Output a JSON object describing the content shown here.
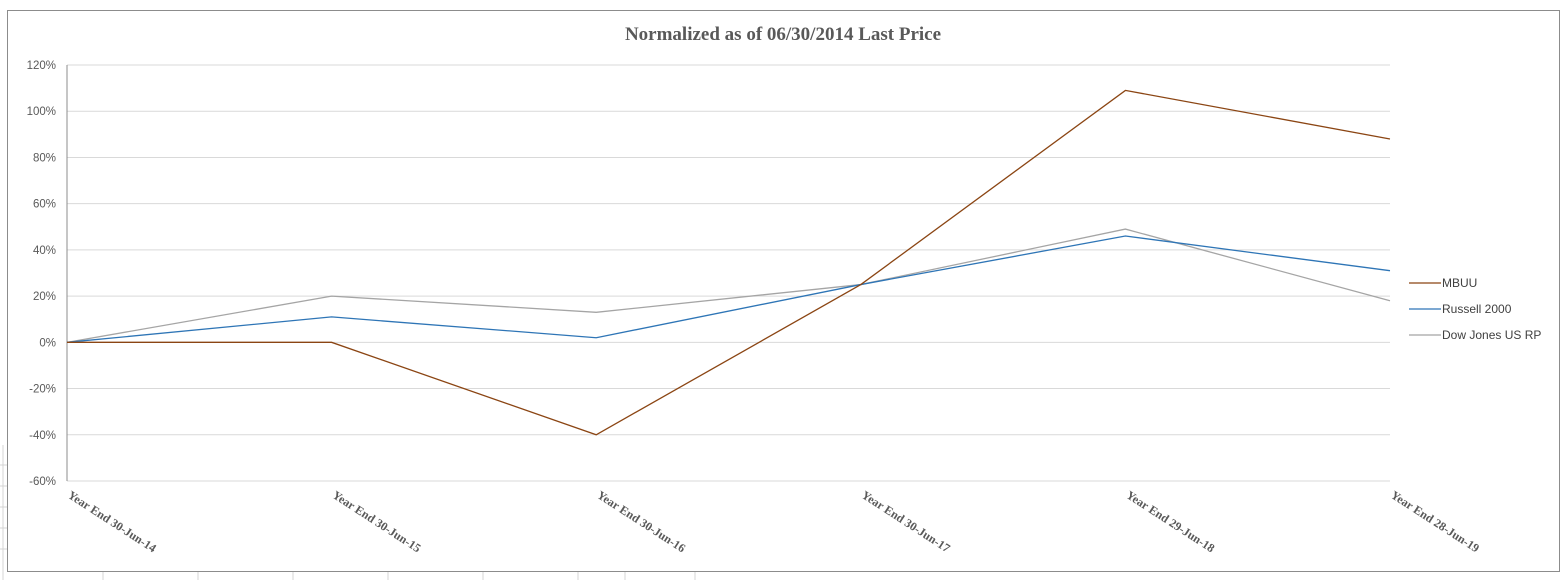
{
  "chart_data": {
    "type": "line",
    "title": "Normalized as of 06/30/2014 Last Price",
    "xlabel": "",
    "ylabel": "",
    "categories": [
      "Year End 30-Jun-14",
      "Year End 30-Jun-15",
      "Year End 30-Jun-16",
      "Year End 30-Jun-17",
      "Year End 29-Jun-18",
      "Year End 28-Jun-19"
    ],
    "yticks": [
      "120%",
      "100%",
      "80%",
      "60%",
      "40%",
      "20%",
      "0%",
      "-20%",
      "-40%",
      "-60%"
    ],
    "ylim": [
      -60,
      120
    ],
    "y_unit": "%",
    "grid": true,
    "legend_position": "right",
    "series": [
      {
        "name": "MBUU",
        "color": "#8B4513",
        "values": [
          0,
          0,
          -40,
          25,
          109,
          88
        ]
      },
      {
        "name": "Russell 2000",
        "color": "#2E75B6",
        "values": [
          0,
          11,
          2,
          25,
          46,
          31
        ]
      },
      {
        "name": "Dow Jones US RP",
        "color": "#A5A5A5",
        "values": [
          0,
          20,
          13,
          25,
          49,
          18
        ]
      }
    ]
  }
}
